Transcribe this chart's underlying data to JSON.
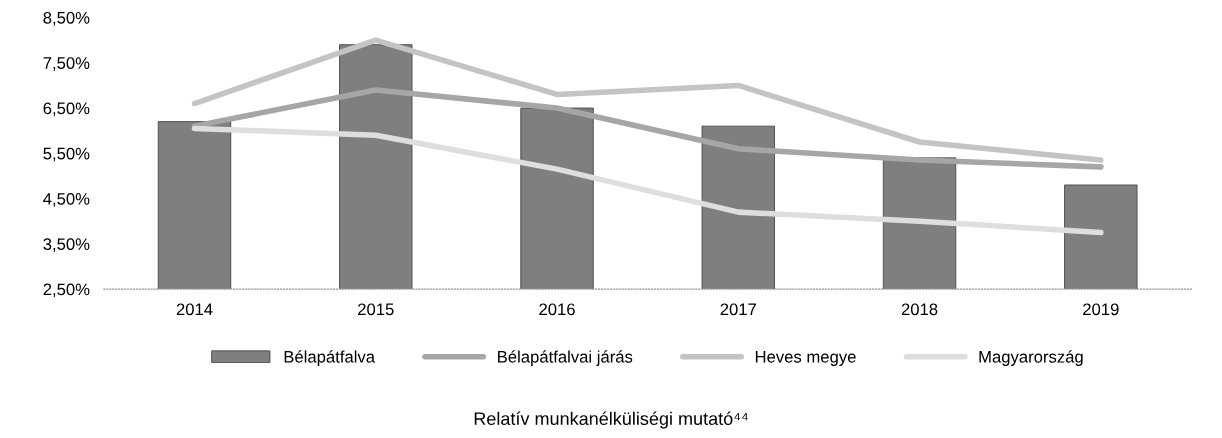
{
  "chart_data": {
    "type": "bar",
    "title": "Relatív munkanélküliségi mutató⁴⁴",
    "categories": [
      "2014",
      "2015",
      "2016",
      "2017",
      "2018",
      "2019"
    ],
    "series": [
      {
        "name": "Bélapátfalva",
        "color": "#7f7f7f",
        "values": [
          6.2,
          7.9,
          6.5,
          6.1,
          5.4,
          4.8
        ]
      },
      {
        "name": "Bélapátfalvai járás",
        "type": "line",
        "color": "#a6a6a6",
        "values": [
          6.1,
          6.9,
          6.5,
          5.6,
          5.35,
          5.2
        ]
      },
      {
        "name": "Heves megye",
        "type": "line",
        "color": "#c4c4c4",
        "values": [
          6.6,
          8.0,
          6.8,
          7.0,
          5.75,
          5.35
        ]
      },
      {
        "name": "Magyarország",
        "type": "line",
        "color": "#dedede",
        "values": [
          6.05,
          5.9,
          5.15,
          4.2,
          4.0,
          3.75
        ]
      }
    ],
    "ylim": [
      2.5,
      8.5
    ],
    "yticks": [
      {
        "value": 2.5,
        "label": "2,50%"
      },
      {
        "value": 3.5,
        "label": "3,50%"
      },
      {
        "value": 4.5,
        "label": "4,50%"
      },
      {
        "value": 5.5,
        "label": "5,50%"
      },
      {
        "value": 6.5,
        "label": "6,50%"
      },
      {
        "value": 7.5,
        "label": "7,50%"
      },
      {
        "value": 8.5,
        "label": "8,50%"
      }
    ],
    "legend": "bottom",
    "grid": false
  }
}
